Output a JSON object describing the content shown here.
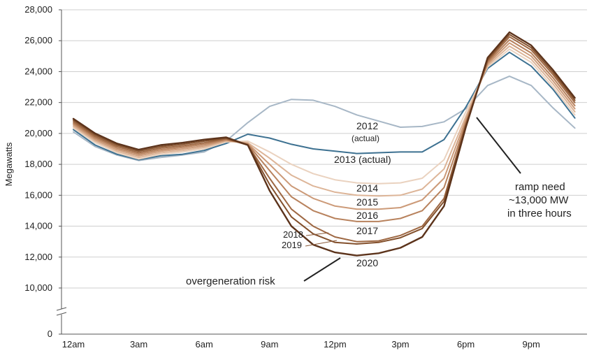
{
  "chart_data": {
    "type": "line",
    "title": "",
    "xlabel": "",
    "ylabel": "Megawatts",
    "ylim": [
      0,
      28000
    ],
    "y_axis_break": [
      0,
      10000
    ],
    "yticks": [
      0,
      10000,
      12000,
      14000,
      16000,
      18000,
      20000,
      22000,
      24000,
      26000,
      28000
    ],
    "ytick_labels": [
      "0",
      "10,000",
      "12,000",
      "14,000",
      "16,000",
      "18,000",
      "20,000",
      "22,000",
      "24,000",
      "26,000",
      "28,000"
    ],
    "x": [
      0,
      1,
      2,
      3,
      4,
      5,
      6,
      7,
      8,
      9,
      10,
      11,
      12,
      13,
      14,
      15,
      16,
      17,
      18,
      19,
      20,
      21,
      22,
      23
    ],
    "xticks": [
      0,
      3,
      6,
      9,
      12,
      15,
      18,
      21
    ],
    "xtick_labels": [
      "12am",
      "3am",
      "6am",
      "9am",
      "12pm",
      "3pm",
      "6pm",
      "9pm"
    ],
    "grid": true,
    "series": [
      {
        "name": "2012 (actual)",
        "color": "#a7b7c6",
        "width": 2,
        "values": [
          20100,
          19150,
          18600,
          18250,
          18450,
          18600,
          18800,
          19500,
          20700,
          21750,
          22200,
          22150,
          21750,
          21200,
          20800,
          20400,
          20450,
          20750,
          21600,
          23100,
          23700,
          23100,
          21650,
          20350
        ]
      },
      {
        "name": "2013 (actual)",
        "color": "#3d7191",
        "width": 2,
        "values": [
          20250,
          19250,
          18650,
          18300,
          18550,
          18650,
          18900,
          19350,
          19950,
          19700,
          19300,
          19000,
          18850,
          18700,
          18750,
          18800,
          18800,
          19600,
          21700,
          24200,
          25250,
          24350,
          22850,
          21000
        ]
      },
      {
        "name": "2014",
        "color": "#ead2bf",
        "width": 2,
        "values": [
          20350,
          19400,
          18750,
          18350,
          18650,
          18800,
          19000,
          19450,
          19500,
          18800,
          18000,
          17400,
          17000,
          16800,
          16750,
          16800,
          17100,
          18300,
          21400,
          24300,
          25450,
          24600,
          23000,
          21200
        ]
      },
      {
        "name": "2015",
        "color": "#ddb598",
        "width": 2,
        "values": [
          20450,
          19500,
          18850,
          18450,
          18750,
          18900,
          19100,
          19500,
          19400,
          18400,
          17300,
          16600,
          16200,
          16000,
          15950,
          16000,
          16400,
          17700,
          21100,
          24400,
          25650,
          24800,
          23200,
          21400
        ]
      },
      {
        "name": "2016",
        "color": "#cc9a78",
        "width": 2,
        "values": [
          20550,
          19600,
          18950,
          18550,
          18850,
          19000,
          19200,
          19550,
          19350,
          18000,
          16600,
          15800,
          15300,
          15100,
          15100,
          15200,
          15700,
          17100,
          20900,
          24500,
          25850,
          25000,
          23400,
          21600
        ]
      },
      {
        "name": "2017",
        "color": "#b8825d",
        "width": 2,
        "values": [
          20650,
          19700,
          19050,
          18650,
          18950,
          19100,
          19300,
          19600,
          19300,
          17600,
          15900,
          15000,
          14500,
          14300,
          14300,
          14500,
          15000,
          16500,
          20700,
          24600,
          26050,
          25200,
          23600,
          21800
        ]
      },
      {
        "name": "2018",
        "color": "#9e6843",
        "width": 2,
        "values": [
          20750,
          19800,
          19150,
          18750,
          19050,
          19200,
          19400,
          19650,
          19250,
          17100,
          15100,
          14000,
          13300,
          13000,
          13050,
          13400,
          14000,
          15800,
          20600,
          24700,
          26250,
          25400,
          23800,
          22000
        ]
      },
      {
        "name": "2019",
        "color": "#83502c",
        "width": 2,
        "values": [
          20850,
          19900,
          19250,
          18850,
          19150,
          19300,
          19500,
          19700,
          19250,
          16700,
          14600,
          13500,
          12950,
          12850,
          12950,
          13250,
          13850,
          15600,
          20500,
          24800,
          26400,
          25550,
          23950,
          22150
        ]
      },
      {
        "name": "2020",
        "color": "#5c331b",
        "width": 2.4,
        "values": [
          20950,
          20000,
          19350,
          18950,
          19250,
          19400,
          19600,
          19750,
          19250,
          16300,
          14000,
          12800,
          12300,
          12100,
          12250,
          12600,
          13300,
          15300,
          20400,
          24900,
          26550,
          25700,
          24100,
          22300
        ]
      }
    ],
    "annotations": {
      "label_2012_line1": "2012",
      "label_2012_line2": "(actual)",
      "label_2013": "2013 (actual)",
      "label_2014": "2014",
      "label_2015": "2015",
      "label_2016": "2016",
      "label_2017": "2017",
      "label_2018": "2018",
      "label_2019": "2019",
      "label_2020": "2020",
      "overgeneration": "overgeneration risk",
      "ramp_line1": "ramp need",
      "ramp_line2": "~13,000 MW",
      "ramp_line3": "in three hours"
    }
  }
}
